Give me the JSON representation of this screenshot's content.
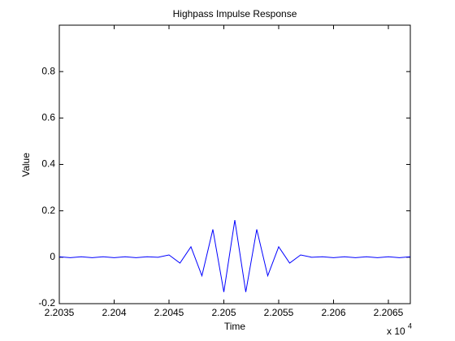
{
  "chart_data": {
    "type": "line",
    "title": "Highpass Impulse Response",
    "xlabel": "Time",
    "ylabel": "Value",
    "x_multiplier": "x 10",
    "x_multiplier_exponent": "4",
    "x": [
      2.2035,
      2.2036,
      2.2037,
      2.2038,
      2.2039,
      2.204,
      2.2041,
      2.2042,
      2.2043,
      2.2044,
      2.2045,
      2.2046,
      2.2047,
      2.2048,
      2.2049,
      2.205,
      2.2051,
      2.2052,
      2.2053,
      2.2054,
      2.2055,
      2.2056,
      2.2057,
      2.2058,
      2.2059,
      2.206,
      2.2061,
      2.2062,
      2.2063,
      2.2064,
      2.2065,
      2.2066,
      2.2067
    ],
    "values": [
      0.002,
      -0.002,
      0.002,
      -0.002,
      0.002,
      -0.002,
      0.002,
      -0.002,
      0.002,
      0,
      0.01,
      -0.025,
      0.045,
      -0.08,
      0.12,
      -0.15,
      0.16,
      -0.15,
      0.12,
      -0.08,
      0.045,
      -0.025,
      0.01,
      0,
      0.002,
      -0.002,
      0.002,
      -0.002,
      0.002,
      -0.002,
      0.002,
      -0.002,
      0.002
    ],
    "color": "#0000ff",
    "xlim": [
      2.2035,
      2.2067
    ],
    "xticks": [
      2.2035,
      2.204,
      2.2045,
      2.205,
      2.2055,
      2.206,
      2.2065
    ],
    "ylim": [
      -0.2,
      1
    ],
    "yticks": [
      -0.2,
      0,
      0.2,
      0.4,
      0.6,
      0.8
    ],
    "grid": false
  }
}
